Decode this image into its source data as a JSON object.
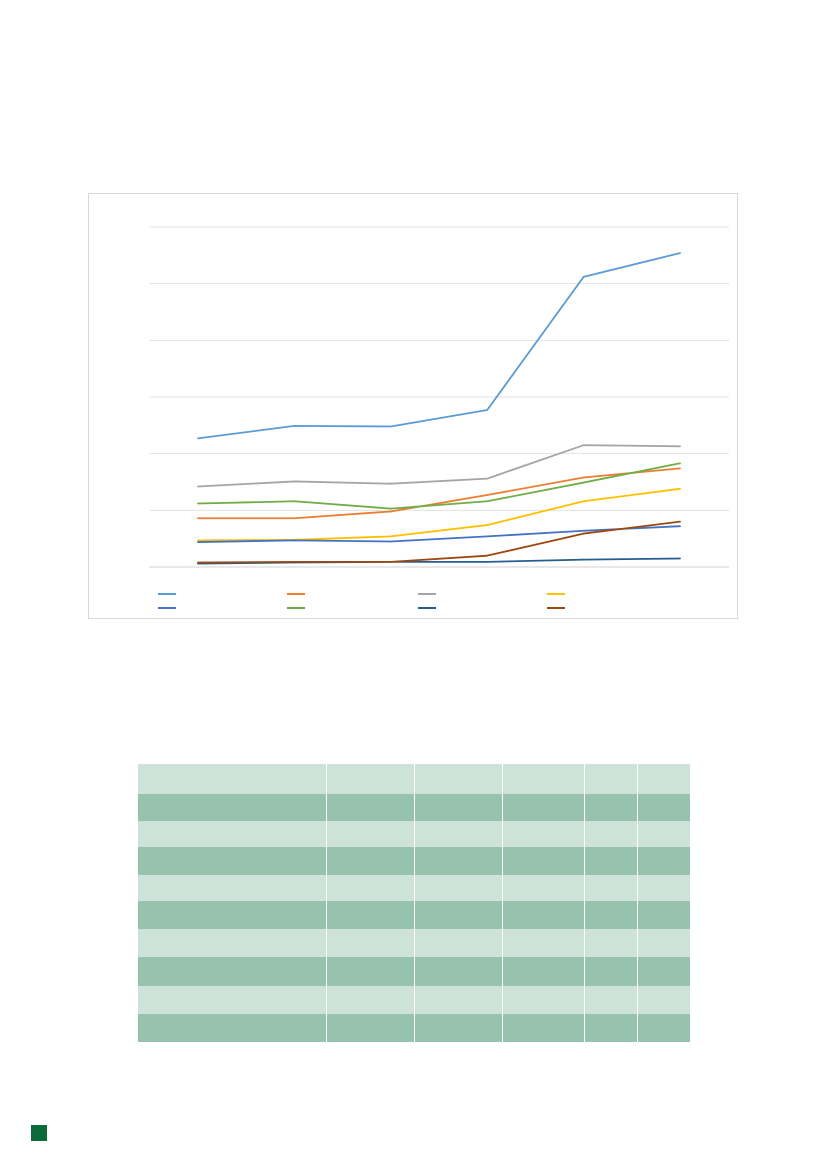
{
  "chart_data": {
    "type": "line",
    "title": "",
    "xlabel": "",
    "ylabel": "",
    "categories": [
      "",
      "",
      "",
      "",
      "",
      ""
    ],
    "ylim": [
      0,
      6
    ],
    "grid": true,
    "legend_position": "bottom",
    "series": [
      {
        "color": "#5b9bd5",
        "values": [
          2.27,
          2.49,
          2.48,
          2.77,
          5.12,
          5.54
        ]
      },
      {
        "color": "#ed7d31",
        "values": [
          0.86,
          0.86,
          0.98,
          1.27,
          1.58,
          1.74
        ]
      },
      {
        "color": "#a5a5a5",
        "values": [
          1.42,
          1.51,
          1.47,
          1.56,
          2.15,
          2.13
        ]
      },
      {
        "color": "#ffc000",
        "values": [
          0.47,
          0.48,
          0.54,
          0.74,
          1.16,
          1.38
        ]
      },
      {
        "color": "#4472c4",
        "values": [
          0.44,
          0.47,
          0.45,
          0.54,
          0.64,
          0.72
        ]
      },
      {
        "color": "#70ad47",
        "values": [
          1.12,
          1.16,
          1.03,
          1.16,
          1.49,
          1.83
        ]
      },
      {
        "color": "#255e91",
        "values": [
          0.06,
          0.08,
          0.09,
          0.09,
          0.13,
          0.15
        ]
      },
      {
        "color": "#9e480e",
        "values": [
          0.08,
          0.09,
          0.09,
          0.2,
          0.59,
          0.8
        ]
      }
    ]
  },
  "table": {
    "rows": [
      [
        "",
        "",
        "",
        "",
        "",
        ""
      ],
      [
        "",
        "",
        "",
        "",
        "",
        ""
      ],
      [
        "",
        "",
        "",
        "",
        "",
        ""
      ],
      [
        "",
        "",
        "",
        "",
        "",
        ""
      ],
      [
        "",
        "",
        "",
        "",
        "",
        ""
      ],
      [
        "",
        "",
        "",
        "",
        "",
        ""
      ],
      [
        "",
        "",
        "",
        "",
        "",
        ""
      ],
      [
        "",
        "",
        "",
        "",
        "",
        ""
      ],
      [
        "",
        "",
        "",
        "",
        "",
        ""
      ],
      [
        "",
        "",
        "",
        "",
        "",
        ""
      ]
    ]
  },
  "colors": {
    "table_light": "#cde2d9",
    "table_dark": "#97c2ad",
    "footer_marker": "#0b6a3a"
  }
}
